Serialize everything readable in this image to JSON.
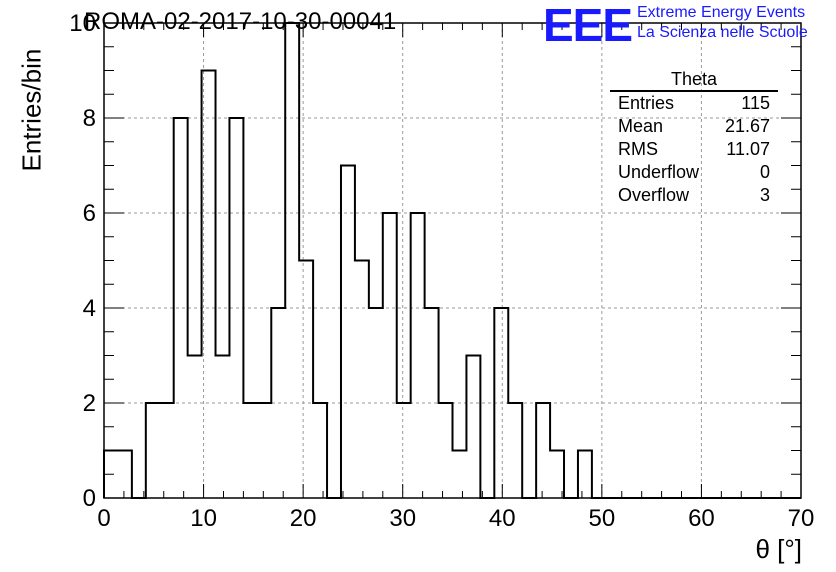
{
  "header": {
    "title": "ROMA-02-2017-10-30-00041",
    "logo_text": "EEE",
    "logo_line1": "Extreme Energy Events",
    "logo_line2": "La Scienza nelle Scuole"
  },
  "stats": {
    "title": "Theta",
    "rows": [
      {
        "label": "Entries",
        "value": "115"
      },
      {
        "label": "Mean",
        "value": "21.67"
      },
      {
        "label": "RMS",
        "value": "11.07"
      },
      {
        "label": "Underflow",
        "value": "0"
      },
      {
        "label": "Overflow",
        "value": "3"
      }
    ]
  },
  "chart_data": {
    "type": "bar",
    "style": "histogram-step",
    "title": "ROMA-02-2017-10-30-00041",
    "xlabel": "θ [°]",
    "ylabel": "Entries/bin",
    "xlim": [
      0,
      70
    ],
    "ylim": [
      0,
      10
    ],
    "bin_width": 1.4,
    "bin_edges_start": 0,
    "values": [
      1,
      1,
      0,
      2,
      2,
      8,
      3,
      9,
      3,
      8,
      2,
      2,
      4,
      10,
      5,
      2,
      0,
      7,
      5,
      4,
      6,
      2,
      6,
      4,
      2,
      1,
      3,
      0,
      4,
      2,
      0,
      2,
      1,
      0,
      1,
      0,
      0,
      0,
      0,
      0,
      0,
      0,
      0,
      0,
      0,
      0,
      0,
      0,
      0,
      0
    ],
    "xticks": [
      0,
      10,
      20,
      30,
      40,
      50,
      60,
      70
    ],
    "yticks": [
      0,
      2,
      4,
      6,
      8,
      10
    ],
    "grid": true,
    "colors": {
      "line": "#000000",
      "grid": "#9a9a9a",
      "logo": "#1a1aff"
    }
  }
}
